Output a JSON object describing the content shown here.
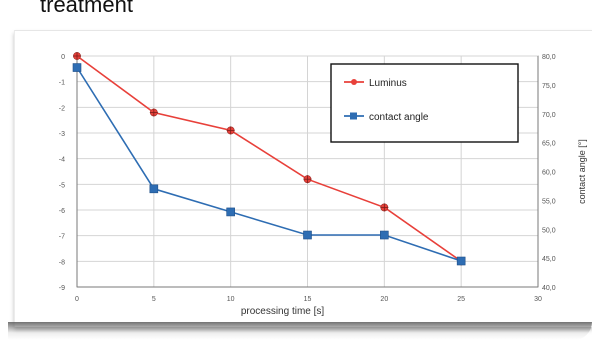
{
  "heading": "treatment",
  "chart_data": {
    "type": "line",
    "x": [
      0,
      5,
      10,
      15,
      20,
      25
    ],
    "xlabel": "processing time  [s]",
    "xlim": [
      0,
      30
    ],
    "x_ticks": [
      "0",
      "5",
      "10",
      "15",
      "20",
      "25",
      "30"
    ],
    "ylim_left": [
      -9,
      0
    ],
    "y_ticks_left": [
      "0",
      "-1",
      "-2",
      "-3",
      "-4",
      "-5",
      "-6",
      "-7",
      "-8",
      "-9"
    ],
    "ylim_right": [
      40,
      80
    ],
    "y_ticks_right": [
      "80,0",
      "75,0",
      "70,0",
      "65,0",
      "60,0",
      "55,0",
      "50,0",
      "45,0",
      "40,0"
    ],
    "ylabel_right": "contact angle  [°]",
    "grid": true,
    "legend_position": "top-right",
    "series": [
      {
        "name": "Luminus",
        "axis": "left",
        "color": "#e8403a",
        "marker": "plus",
        "values": [
          0,
          -2.2,
          -2.9,
          -4.8,
          -5.9,
          -8.0
        ]
      },
      {
        "name": "contact angle",
        "axis": "right",
        "color": "#2e6db3",
        "marker": "square",
        "values": [
          78.0,
          57.0,
          53.0,
          49.0,
          49.0,
          44.5
        ]
      }
    ]
  }
}
